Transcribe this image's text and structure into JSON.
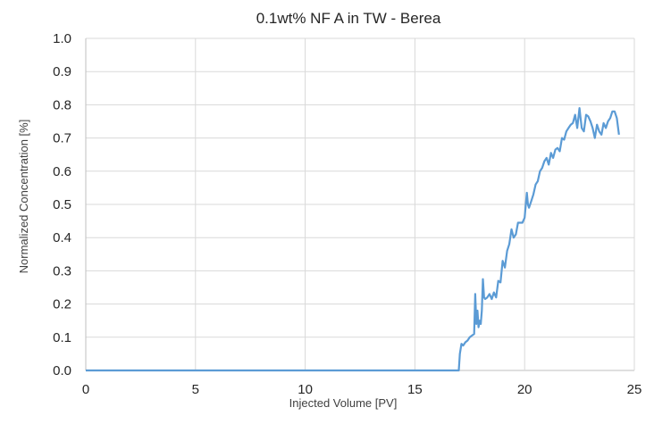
{
  "chart_data": {
    "type": "line",
    "title": "0.1wt% NF A in  TW - Berea",
    "xlabel": "Injected Volume [PV]",
    "ylabel": "Normalized Concentration [%]",
    "xlim": [
      0,
      25
    ],
    "ylim": [
      0,
      1.0
    ],
    "x_ticks": [
      "0",
      "5",
      "10",
      "15",
      "20",
      "25"
    ],
    "y_ticks": [
      "0.0",
      "0.1",
      "0.2",
      "0.3",
      "0.4",
      "0.5",
      "0.6",
      "0.7",
      "0.8",
      "0.9",
      "1.0"
    ],
    "grid": true,
    "legend": "none",
    "colors": {
      "series": "#5b9bd5",
      "grid": "#d9d9d9",
      "axis": "#bfbfbf"
    },
    "series": [
      {
        "x": [
          0,
          17.0,
          17.05,
          17.12,
          17.2,
          17.3,
          17.4,
          17.5,
          17.6,
          17.7,
          17.75,
          17.8,
          17.85,
          17.9,
          17.95,
          18.0,
          18.05,
          18.1,
          18.15,
          18.2,
          18.3,
          18.4,
          18.5,
          18.6,
          18.7,
          18.8,
          18.9,
          19.0,
          19.1,
          19.2,
          19.3,
          19.4,
          19.5,
          19.6,
          19.7,
          19.8,
          19.9,
          20.0,
          20.1,
          20.15,
          20.2,
          20.3,
          20.4,
          20.5,
          20.6,
          20.7,
          20.8,
          20.9,
          21.0,
          21.1,
          21.2,
          21.3,
          21.4,
          21.5,
          21.6,
          21.7,
          21.8,
          21.9,
          22.0,
          22.1,
          22.2,
          22.3,
          22.4,
          22.5,
          22.55,
          22.6,
          22.7,
          22.8,
          22.9,
          23.0,
          23.1,
          23.2,
          23.3,
          23.4,
          23.5,
          23.6,
          23.7,
          23.8,
          23.9,
          24.0,
          24.1,
          24.2,
          24.3
        ],
        "y": [
          0.0,
          0.0,
          0.05,
          0.08,
          0.075,
          0.085,
          0.09,
          0.1,
          0.105,
          0.11,
          0.23,
          0.14,
          0.18,
          0.13,
          0.15,
          0.14,
          0.18,
          0.275,
          0.22,
          0.215,
          0.22,
          0.23,
          0.215,
          0.235,
          0.22,
          0.27,
          0.265,
          0.33,
          0.31,
          0.36,
          0.38,
          0.425,
          0.4,
          0.41,
          0.445,
          0.445,
          0.445,
          0.46,
          0.535,
          0.5,
          0.49,
          0.51,
          0.53,
          0.56,
          0.57,
          0.6,
          0.61,
          0.63,
          0.64,
          0.62,
          0.655,
          0.64,
          0.665,
          0.67,
          0.66,
          0.7,
          0.695,
          0.72,
          0.73,
          0.74,
          0.745,
          0.77,
          0.73,
          0.79,
          0.76,
          0.73,
          0.72,
          0.77,
          0.765,
          0.75,
          0.73,
          0.7,
          0.74,
          0.72,
          0.71,
          0.745,
          0.73,
          0.75,
          0.76,
          0.78,
          0.78,
          0.76,
          0.71
        ]
      }
    ]
  }
}
